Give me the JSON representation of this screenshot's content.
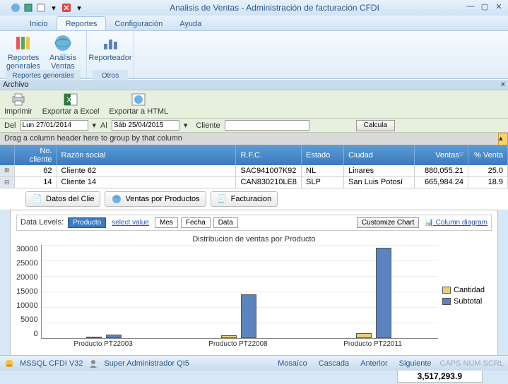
{
  "window": {
    "title": "Analisis de Ventas - Administración de facturación CFDI"
  },
  "menu": {
    "inicio": "Inicio",
    "reportes": "Reportes",
    "configuracion": "Configuración",
    "ayuda": "Ayuda"
  },
  "ribbon": {
    "g1": {
      "label": "Reportes generales",
      "item1a": "Reportes",
      "item1b": "generales",
      "item2a": "Análisis",
      "item2b": "Ventas"
    },
    "g2": {
      "label": "Otros",
      "item1": "Reporteador"
    }
  },
  "archivo": {
    "label": "Archivo"
  },
  "toolbar2": {
    "imprimir": "Imprimir",
    "excel": "Exportar a Excel",
    "html": "Exportar a HTML"
  },
  "filter": {
    "del": "Del",
    "date1": "Lun 27/01/2014",
    "al": "Al",
    "date2": "Sáb 25/04/2015",
    "cliente": "Cliente",
    "calcula": "Calcula"
  },
  "groupby": {
    "hint": "Drag a column header here to group by that column"
  },
  "grid": {
    "h": {
      "no": "No. cliente",
      "rs": "Razón social",
      "rfc": "R.F.C.",
      "est": "Estado",
      "ciu": "Ciudad",
      "ven": "Ventas",
      "pct": "% Venta"
    },
    "r1": {
      "no": "62",
      "rs": "Cliente 62",
      "rfc": "SAC941007K92",
      "est": "NL",
      "ciu": "Linares",
      "ven": "880,055.21",
      "pct": "25.0"
    },
    "r2": {
      "no": "14",
      "rs": "Cliente 14",
      "rfc": "CAN830210LE8",
      "est": "SLP",
      "ciu": "San Luis Potosí",
      "ven": "665,984.24",
      "pct": "18.9"
    }
  },
  "tabs": {
    "datos": "Datos del Clie",
    "ventas": "Ventas por Productos",
    "fact": "Facturacion"
  },
  "dlevels": {
    "label": "Data Levels:",
    "producto": "Producto",
    "select": "select value",
    "mes": "Mes",
    "fecha": "Fecha",
    "data": "Data",
    "customize": "Customize Chart",
    "coldiag": "Column diagram"
  },
  "chart": {
    "title": "Distribucion de ventas por  Producto",
    "xaxis": "Producto",
    "colors": {
      "cantidad": "#e8cf72",
      "subtotal": "#5a84bf",
      "border": "#555555"
    },
    "ymax": 30000,
    "yticks": [
      "30000",
      "25000",
      "20000",
      "15000",
      "10000",
      "5000",
      "0"
    ],
    "series": [
      {
        "label": "Producto PT22003",
        "x_pct": 16,
        "cantidad": 120,
        "subtotal": 1100
      },
      {
        "label": "Producto PT22008",
        "x_pct": 50,
        "cantidad": 800,
        "subtotal": 13800
      },
      {
        "label": "Producto PT22011",
        "x_pct": 84,
        "cantidad": 1400,
        "subtotal": 28800
      }
    ],
    "legend": {
      "cantidad": "Cantidad",
      "subtotal": "Subtotal"
    }
  },
  "total": {
    "value": "3,517,293.9"
  },
  "status": {
    "db": "MSSQL CFDI V32",
    "user": "Super Administrador QI5",
    "mosaico": "Mosaíco",
    "cascada": "Cascada",
    "anterior": "Anterior",
    "siguiente": "Siguiente",
    "dim": "CAPS NUM SCRL"
  }
}
